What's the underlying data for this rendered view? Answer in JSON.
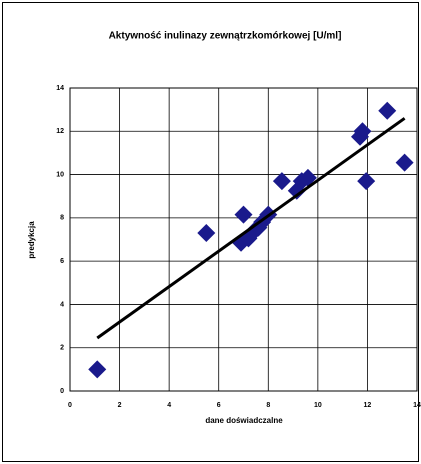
{
  "chart_data": {
    "type": "scatter",
    "title": "Aktywność inulinazy zewnątrzkomórkowej [U/ml]",
    "xlabel": "dane doświadczalne",
    "ylabel": "predykcja",
    "series": [
      {
        "color": "#1a1a8c",
        "x": [
          1.1,
          5.5,
          7.0,
          6.9,
          7.2,
          7.4,
          7.6,
          7.75,
          8.0,
          8.55,
          9.15,
          9.35,
          9.6,
          11.7,
          11.8,
          11.95,
          12.8,
          13.5
        ],
        "values": [
          1.0,
          7.3,
          8.15,
          6.85,
          7.05,
          7.35,
          7.55,
          7.8,
          8.15,
          9.7,
          9.25,
          9.7,
          9.85,
          11.75,
          12.0,
          9.7,
          12.95,
          10.55
        ]
      }
    ],
    "trendline": {
      "color": "#000000",
      "x": [
        1.1,
        13.5
      ],
      "values": [
        2.45,
        12.6
      ]
    },
    "xlim": [
      0,
      14
    ],
    "xticks": [
      0,
      2,
      4,
      6,
      8,
      10,
      12,
      14
    ],
    "ylim": [
      0,
      14
    ],
    "yticks": [
      0,
      2,
      4,
      6,
      8,
      10,
      12,
      14
    ],
    "grid": true
  }
}
